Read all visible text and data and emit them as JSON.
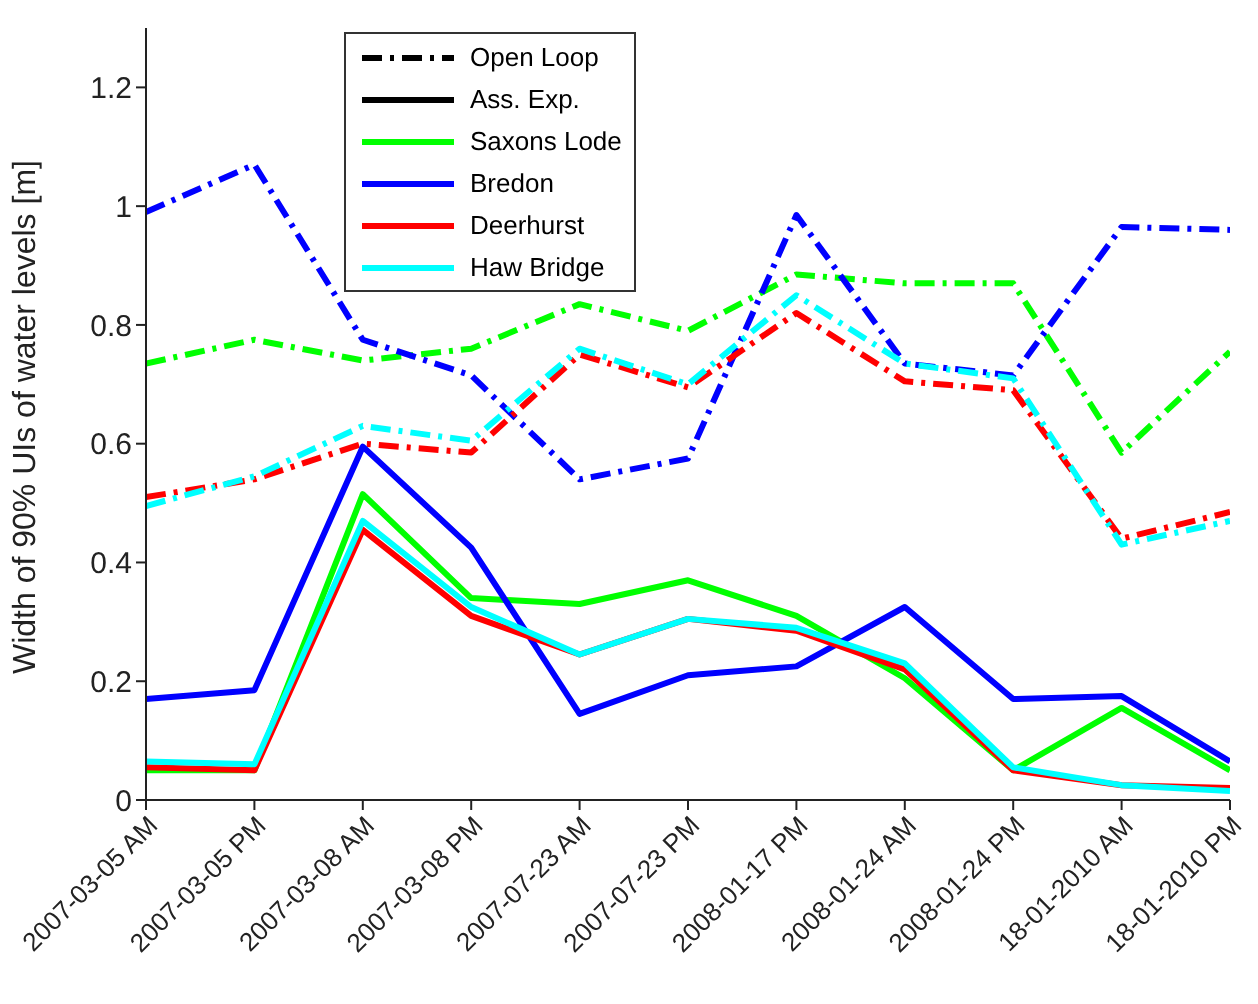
{
  "chart_data": {
    "type": "line",
    "ylabel": "Width of 90% UIs of water levels [m]",
    "categories": [
      "2007-03-05 AM",
      "2007-03-05 PM",
      "2007-03-08 AM",
      "2007-03-08 PM",
      "2007-07-23 AM",
      "2007-07-23 PM",
      "2008-01-17 PM",
      "2008-01-24 AM",
      "2008-01-24 PM",
      "18-01-2010 AM",
      "18-01-2010 PM"
    ],
    "ylim": [
      0,
      1.3
    ],
    "yticks": [
      0,
      0.2,
      0.4,
      0.6,
      0.8,
      1,
      1.2
    ],
    "grid": false,
    "legend": "top left",
    "marker": "none",
    "series": [
      {
        "name": "Open Loop",
        "color": "#000000",
        "line_style": "dashed",
        "values": [
          null,
          null,
          null,
          null,
          null,
          null,
          null,
          null,
          null,
          null,
          null
        ]
      },
      {
        "name": "Ass. Exp.",
        "color": "#000000",
        "line_style": "solid",
        "values": [
          null,
          null,
          null,
          null,
          null,
          null,
          null,
          null,
          null,
          null,
          null
        ]
      },
      {
        "color": "#00ff00",
        "line_style": "dashed",
        "values": [
          0.735,
          0.775,
          0.74,
          0.76,
          0.835,
          0.79,
          0.885,
          0.87,
          0.87,
          0.585,
          0.755
        ]
      },
      {
        "color": "#0000ff",
        "line_style": "dashed",
        "values": [
          0.99,
          1.07,
          0.775,
          0.715,
          0.54,
          0.575,
          0.985,
          0.735,
          0.715,
          0.965,
          0.96
        ]
      },
      {
        "color": "#ff0000",
        "line_style": "dashed",
        "values": [
          0.51,
          0.54,
          0.6,
          0.585,
          0.75,
          0.695,
          0.82,
          0.705,
          0.69,
          0.44,
          0.485
        ]
      },
      {
        "color": "#00ffff",
        "line_style": "dashed",
        "values": [
          0.495,
          0.545,
          0.63,
          0.605,
          0.76,
          0.7,
          0.85,
          0.735,
          0.71,
          0.43,
          0.47
        ]
      },
      {
        "name": "Saxons Lode",
        "color": "#00ff00",
        "line_style": "solid",
        "values": [
          0.05,
          0.05,
          0.515,
          0.34,
          0.33,
          0.37,
          0.31,
          0.205,
          0.05,
          0.155,
          0.05
        ]
      },
      {
        "name": "Bredon",
        "color": "#0000ff",
        "line_style": "solid",
        "values": [
          0.17,
          0.185,
          0.595,
          0.425,
          0.145,
          0.21,
          0.225,
          0.325,
          0.17,
          0.175,
          0.065
        ]
      },
      {
        "name": "Deerhurst",
        "color": "#ff0000",
        "line_style": "solid",
        "values": [
          0.055,
          0.05,
          0.455,
          0.31,
          0.245,
          0.305,
          0.285,
          0.22,
          0.05,
          0.025,
          0.02
        ]
      },
      {
        "name": "Haw Bridge",
        "color": "#00ffff",
        "line_style": "solid",
        "values": [
          0.065,
          0.06,
          0.47,
          0.325,
          0.245,
          0.305,
          0.29,
          0.23,
          0.055,
          0.025,
          0.015
        ]
      }
    ]
  }
}
